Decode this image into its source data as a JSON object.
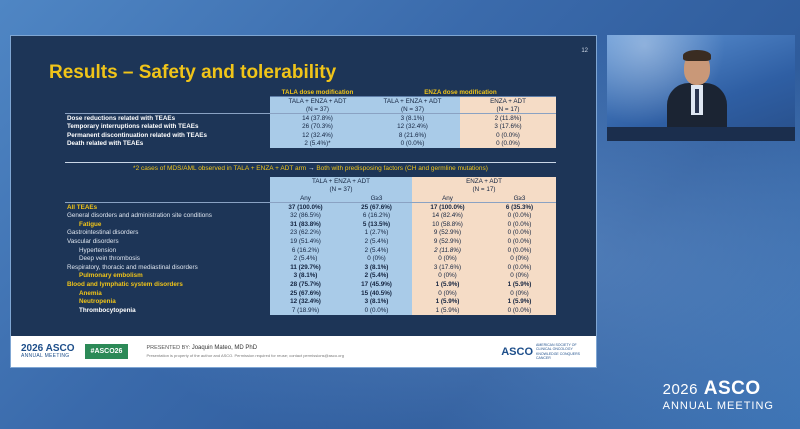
{
  "slide": {
    "number": "12",
    "title": "Results – Safety and tolerability",
    "table1": {
      "group_headers": [
        "TALA dose modification",
        "ENZA dose modification"
      ],
      "columns": [
        {
          "name": "TALA + ENZA + ADT",
          "n": "(N = 37)"
        },
        {
          "name": "TALA + ENZA + ADT",
          "n": "(N = 37)"
        },
        {
          "name": "ENZA + ADT",
          "n": "(N = 17)"
        }
      ],
      "rows": [
        {
          "label": "Dose reductions related with TEAEs",
          "values": [
            "14 (37.8%)",
            "3 (8.1%)",
            "2 (11.8%)"
          ]
        },
        {
          "label": "Temporary interruptions related with TEAEs",
          "values": [
            "26 (70.3%)",
            "12 (32.4%)",
            "3 (17.6%)"
          ]
        },
        {
          "label": "Permanent discontinuation related with TEAEs",
          "values": [
            "12 (32.4%)",
            "8 (21.6%)",
            "0 (0.0%)"
          ]
        },
        {
          "label": "Death related with TEAEs",
          "values": [
            "2 (5.4%)*",
            "0 (0.0%)",
            "0 (0.0%)"
          ]
        }
      ]
    },
    "note": {
      "part1": "*2 cases of MDS/AML observed in TALA + ENZA + ADT arm",
      "arrow": "→",
      "part2": "Both with predisposing factors (CH and germline mutations)"
    },
    "table2": {
      "arms": [
        {
          "name": "TALA + ENZA + ADT",
          "n": "(N = 37)"
        },
        {
          "name": "ENZA + ADT",
          "n": "(N = 17)"
        }
      ],
      "subheaders": [
        "Any",
        "G≥3",
        "Any",
        "G≥3"
      ],
      "rows": [
        {
          "label": "All TEAEs",
          "values": [
            "37 (100.0%)",
            "25 (67.6%)",
            "17 (100.0%)",
            "6 (35.3%)"
          ]
        },
        {
          "label": "General disorders and administration site conditions",
          "values": [
            "32 (86.5%)",
            "6 (16.2%)",
            "14 (82.4%)",
            "0 (0.0%)"
          ]
        },
        {
          "label": "Fatigue",
          "values": [
            "31 (83.8%)",
            "5 (13.5%)",
            "10 (58.8%)",
            "0 (0.0%)"
          ]
        },
        {
          "label": "Gastrointestinal disorders",
          "values": [
            "23 (62.2%)",
            "1 (2.7%)",
            "9 (52.9%)",
            "0 (0.0%)"
          ]
        },
        {
          "label": "Vascular disorders",
          "values": [
            "19 (51.4%)",
            "2 (5.4%)",
            "9 (52.9%)",
            "0 (0.0%)"
          ]
        },
        {
          "label": "Hypertension",
          "values": [
            "6 (16.2%)",
            "2 (5.4%)",
            "2 (11.8%)",
            "0 (0.0%)"
          ]
        },
        {
          "label": "Deep vein thrombosis",
          "values": [
            "2 (5.4%)",
            "0 (0%)",
            "0 (0%)",
            "0 (0%)"
          ]
        },
        {
          "label": "Respiratory, thoracic and mediastinal disorders",
          "values": [
            "11 (29.7%)",
            "3 (8.1%)",
            "3 (17.6%)",
            "0 (0.0%)"
          ]
        },
        {
          "label": "Pulmonary embolism",
          "values": [
            "3 (8.1%)",
            "2 (5.4%)",
            "0 (0%)",
            "0 (0%)"
          ]
        },
        {
          "label": "Blood and lymphatic system disorders",
          "values": [
            "28 (75.7%)",
            "17 (45.9%)",
            "1 (5.9%)",
            "1 (5.9%)"
          ]
        },
        {
          "label": "Anemia",
          "values": [
            "25 (67.6%)",
            "15 (40.5%)",
            "0 (0%)",
            "0 (0%)"
          ]
        },
        {
          "label": "Neutropenia",
          "values": [
            "12 (32.4%)",
            "3 (8.1%)",
            "1 (5.9%)",
            "1 (5.9%)"
          ]
        },
        {
          "label": "Thrombocytopenia",
          "values": [
            "7 (18.9%)",
            "0 (0.0%)",
            "1 (5.9%)",
            "0 (0.0%)"
          ]
        }
      ]
    },
    "footer": {
      "logo_year": "2026 ASCO",
      "logo_meeting": "ANNUAL MEETING",
      "hashtag": "#ASCO26",
      "presented_by_label": "PRESENTED BY:",
      "presenter": "Joaquin Mateo, MD PhD",
      "disclaimer": "Presentation is property of the author and ASCO. Permission required for reuse; contact permissions@asco.org",
      "asco_mark": "ASCO",
      "asco_tagline": "AMERICAN SOCIETY OF CLINICAL ONCOLOGY KNOWLEDGE CONQUERS CANCER"
    }
  },
  "event_logo": {
    "year": "2026",
    "name": "ASCO",
    "subtitle": "ANNUAL MEETING"
  },
  "colors": {
    "accent_yellow": "#f0c419",
    "slide_bg": "#1d3557",
    "arm_blue": "#a9cbe8",
    "arm_peach": "#f5dcc6"
  }
}
